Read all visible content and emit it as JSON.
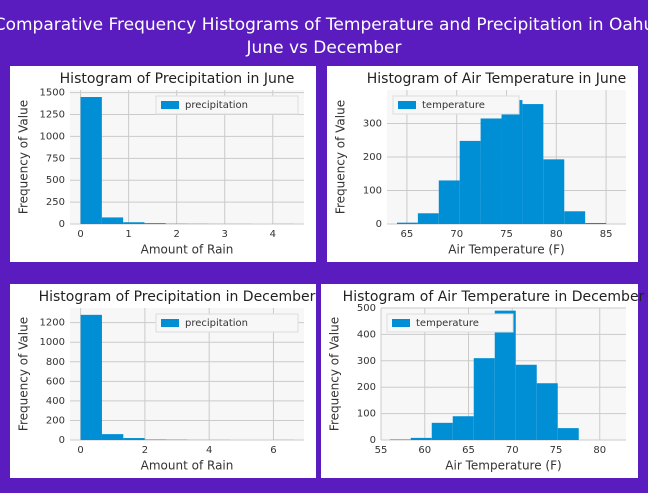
{
  "header": {
    "title": "Comparative Frequency Histograms of Temperature and Precipitation in Oahu",
    "subtitle": "June vs December"
  },
  "chart_data": [
    {
      "type": "histogram",
      "title": "Histogram of Precipitation in June",
      "x_label": "Amount of Rain",
      "y_label": "Frequency of Value",
      "bins": [
        0,
        0.443,
        0.886,
        1.329,
        1.772,
        2.215,
        2.658,
        3.101,
        3.544,
        3.987,
        4.43
      ],
      "series": [
        {
          "name": "precipitation",
          "color": "#008fd5",
          "values": [
            1450,
            75,
            20,
            10,
            3,
            2,
            1,
            1,
            0,
            1
          ]
        }
      ],
      "xlim": [
        -0.22,
        4.65
      ],
      "xticks": [
        0,
        1,
        2,
        3,
        4
      ],
      "ylim": [
        0,
        1530
      ],
      "yticks": [
        0,
        250,
        500,
        750,
        1000,
        1250,
        1500
      ],
      "grid": true,
      "legend": "upper right"
    },
    {
      "type": "histogram",
      "title": "Histogram of Air Temperature in June",
      "x_label": "Air Temperature (F)",
      "y_label": "Frequency of Value",
      "bins": [
        64,
        66.1,
        68.2,
        70.3,
        72.4,
        74.5,
        76.6,
        78.7,
        80.8,
        82.9,
        85
      ],
      "series": [
        {
          "name": "temperature",
          "color": "#008fd5",
          "values": [
            4,
            32,
            130,
            248,
            315,
            370,
            358,
            193,
            38,
            3
          ]
        }
      ],
      "xlim": [
        63,
        87
      ],
      "xticks": [
        65,
        70,
        75,
        80,
        85
      ],
      "ylim": [
        0,
        400
      ],
      "yticks": [
        0,
        100,
        200,
        300
      ],
      "grid": true,
      "legend": "upper left"
    },
    {
      "type": "histogram",
      "title": "Histogram of Precipitation in December",
      "x_label": "Amount of Rain",
      "y_label": "Frequency of Value",
      "bins": [
        0,
        0.664,
        1.328,
        1.992,
        2.656,
        3.32,
        3.984,
        4.648,
        5.312,
        5.976,
        6.64
      ],
      "series": [
        {
          "name": "precipitation",
          "color": "#008fd5",
          "values": [
            1280,
            60,
            20,
            5,
            3,
            1,
            1,
            0,
            0,
            1
          ]
        }
      ],
      "xlim": [
        -0.33,
        6.95
      ],
      "xticks": [
        0,
        2,
        4,
        6
      ],
      "ylim": [
        0,
        1350
      ],
      "yticks": [
        0,
        200,
        400,
        600,
        800,
        1000,
        1200
      ],
      "grid": true,
      "legend": "upper right"
    },
    {
      "type": "histogram",
      "title": "Histogram of Air Temperature in December",
      "x_label": "Air Temperature (F)",
      "y_label": "Frequency of Value",
      "bins": [
        56,
        58.4,
        60.8,
        63.2,
        65.6,
        68,
        70.4,
        72.8,
        75.2,
        77.6,
        80
      ],
      "series": [
        {
          "name": "temperature",
          "color": "#008fd5",
          "values": [
            2,
            8,
            65,
            90,
            310,
            490,
            285,
            215,
            45,
            0
          ]
        }
      ],
      "xlim": [
        55,
        83
      ],
      "xticks": [
        55,
        60,
        65,
        70,
        75,
        80
      ],
      "ylim": [
        0,
        500
      ],
      "yticks": [
        0,
        100,
        200,
        300,
        400,
        500
      ],
      "grid": true,
      "legend": "upper left"
    }
  ]
}
